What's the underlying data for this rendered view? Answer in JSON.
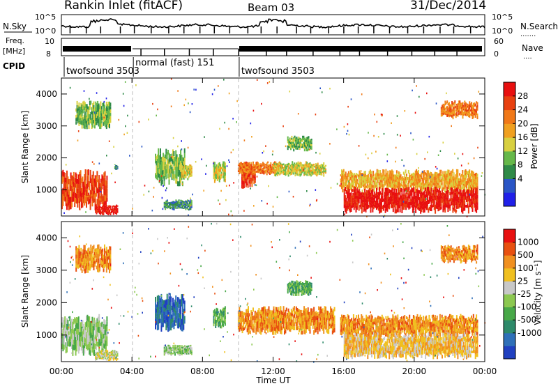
{
  "header": {
    "title": "Rankin Inlet (fitACF)",
    "beam": "Beam 03",
    "date": "31/Dec/2014"
  },
  "top_panels": {
    "nsky_label": "N.Sky",
    "nsky_ticks": [
      "10^5",
      "10^0"
    ],
    "nsearch_label": "N.Search",
    "nsearch_ticks": [
      "10^5",
      "10^0"
    ],
    "freq_label_1": "Freq.",
    "freq_label_2": "[MHz]",
    "freq_ticks": [
      "10",
      "8"
    ],
    "nave_label": "Nave",
    "nave_ticks": [
      "60",
      "0"
    ],
    "cpid_label": "CPID",
    "cpid_segments": [
      {
        "label": "twofsound 3503",
        "start": 0.0
      },
      {
        "label": "normal (fast) 151",
        "start": 4.0
      },
      {
        "label": "twofsound 3503",
        "start": 10.0
      }
    ]
  },
  "time_axis": {
    "label": "Time UT",
    "ticks": [
      "00:00",
      "04:00",
      "08:00",
      "12:00",
      "16:00",
      "20:00",
      "00:00"
    ],
    "tick_hours": [
      0,
      4,
      8,
      12,
      16,
      20,
      24
    ]
  },
  "power_colorbar": {
    "label": "Power [dB]",
    "ticks": [
      "28",
      "24",
      "20",
      "16",
      "12",
      "8",
      "4"
    ],
    "colors": [
      "#2020e8",
      "#2a56c6",
      "#2f8a48",
      "#66b84a",
      "#d8d040",
      "#f0a020",
      "#f07818",
      "#e84010",
      "#e81010"
    ]
  },
  "velocity_colorbar": {
    "label": "Velocity [m s⁻¹]",
    "ticks": [
      "1000",
      "500",
      "100",
      "25",
      "-25",
      "-100",
      "-500",
      "-1000"
    ],
    "colors": [
      "#2040c0",
      "#2f70b8",
      "#2e8a6a",
      "#48a848",
      "#8cc850",
      "#c8c8c8",
      "#f0c020",
      "#f09020",
      "#e85010",
      "#e81010"
    ]
  },
  "chart_data": [
    {
      "type": "heatmap",
      "name": "power",
      "ylabel": "Slant Range [km]",
      "xlabel": "",
      "ylim": [
        180,
        4500
      ],
      "xlim": [
        0,
        24
      ],
      "yticks": [
        "4000",
        "3000",
        "2000",
        "1000"
      ],
      "ytick_values": [
        4000,
        3000,
        2000,
        1000
      ],
      "regions": [
        {
          "t0": 0.0,
          "t1": 2.6,
          "r0": 350,
          "r1": 1650,
          "level": 7
        },
        {
          "t0": 0.8,
          "t1": 2.8,
          "r0": 2900,
          "r1": 3800,
          "level": 3
        },
        {
          "t0": 1.9,
          "t1": 3.2,
          "r0": 200,
          "r1": 550,
          "level": 8
        },
        {
          "t0": 3.0,
          "t1": 3.2,
          "r0": 1600,
          "r1": 1800,
          "level": 2
        },
        {
          "t0": 5.3,
          "t1": 7.0,
          "r0": 1100,
          "r1": 2300,
          "level": 3
        },
        {
          "t0": 5.8,
          "t1": 7.4,
          "r0": 350,
          "r1": 700,
          "level": 2
        },
        {
          "t0": 6.8,
          "t1": 7.4,
          "r0": 1300,
          "r1": 1800,
          "level": 4
        },
        {
          "t0": 8.6,
          "t1": 9.3,
          "r0": 1200,
          "r1": 1900,
          "level": 4
        },
        {
          "t0": 10.2,
          "t1": 11.0,
          "r0": 1000,
          "r1": 1900,
          "level": 7
        },
        {
          "t0": 10.0,
          "t1": 12.5,
          "r0": 1450,
          "r1": 1900,
          "level": 6
        },
        {
          "t0": 12.0,
          "t1": 15.0,
          "r0": 1400,
          "r1": 1900,
          "level": 4
        },
        {
          "t0": 12.8,
          "t1": 14.2,
          "r0": 2200,
          "r1": 2700,
          "level": 3
        },
        {
          "t0": 15.8,
          "t1": 23.6,
          "r0": 900,
          "r1": 1650,
          "level": 5
        },
        {
          "t0": 16.0,
          "t1": 23.6,
          "r0": 250,
          "r1": 1100,
          "level": 8
        },
        {
          "t0": 21.5,
          "t1": 23.6,
          "r0": 3200,
          "r1": 3800,
          "level": 6
        }
      ]
    },
    {
      "type": "heatmap",
      "name": "velocity",
      "ylabel": "Slant Range [km]",
      "xlabel": "Time UT",
      "ylim": [
        180,
        4500
      ],
      "xlim": [
        0,
        24
      ],
      "yticks": [
        "4000",
        "3000",
        "2000",
        "1000"
      ],
      "ytick_values": [
        4000,
        3000,
        2000,
        1000
      ],
      "regions": [
        {
          "t0": 0.0,
          "t1": 2.6,
          "r0": 350,
          "r1": 1650,
          "level": 4
        },
        {
          "t0": 0.8,
          "t1": 2.8,
          "r0": 2900,
          "r1": 3800,
          "level": 7
        },
        {
          "t0": 1.9,
          "t1": 3.2,
          "r0": 200,
          "r1": 550,
          "level": 5
        },
        {
          "t0": 5.3,
          "t1": 7.0,
          "r0": 1100,
          "r1": 2300,
          "level": 1
        },
        {
          "t0": 5.8,
          "t1": 7.4,
          "r0": 350,
          "r1": 700,
          "level": 4
        },
        {
          "t0": 8.6,
          "t1": 9.3,
          "r0": 1200,
          "r1": 1900,
          "level": 3
        },
        {
          "t0": 10.0,
          "t1": 12.5,
          "r0": 1000,
          "r1": 1900,
          "level": 7
        },
        {
          "t0": 12.0,
          "t1": 15.5,
          "r0": 1000,
          "r1": 1900,
          "level": 7
        },
        {
          "t0": 12.8,
          "t1": 14.2,
          "r0": 2200,
          "r1": 2700,
          "level": 3
        },
        {
          "t0": 15.8,
          "t1": 23.6,
          "r0": 900,
          "r1": 1650,
          "level": 7
        },
        {
          "t0": 16.0,
          "t1": 23.6,
          "r0": 250,
          "r1": 1100,
          "level": 6
        },
        {
          "t0": 21.5,
          "t1": 23.6,
          "r0": 3200,
          "r1": 3800,
          "level": 7
        }
      ]
    }
  ]
}
